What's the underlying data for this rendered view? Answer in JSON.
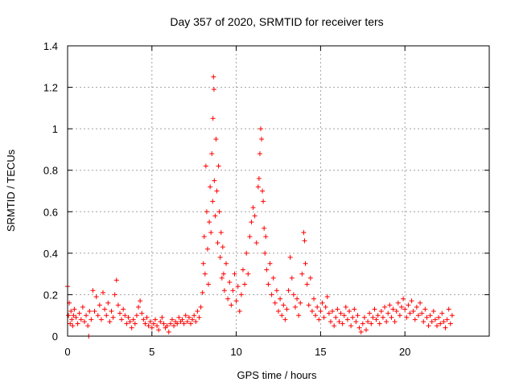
{
  "chart_data": {
    "type": "scatter",
    "title": "Day 357 of 2020, SRMTID for receiver ters",
    "xlabel": "GPS time / hours",
    "ylabel": "SRMTID / TECUs",
    "xlim": [
      0,
      25
    ],
    "ylim": [
      0,
      1.4
    ],
    "xticks": [
      0,
      5,
      10,
      15,
      20
    ],
    "xtick_labels": [
      "0",
      "5",
      "10",
      "15",
      "20"
    ],
    "yticks": [
      0,
      0.2,
      0.4,
      0.6,
      0.8,
      1.0,
      1.2,
      1.4
    ],
    "ytick_labels": [
      "0",
      "0.2",
      "0.4",
      "0.6",
      "0.8",
      "1",
      "1.2",
      "1.4"
    ],
    "grid": true,
    "marker": "+",
    "series": [
      {
        "name": "SRMTID",
        "color": "#ff0000",
        "points": [
          [
            0.0,
            0.24
          ],
          [
            0.05,
            0.1
          ],
          [
            0.1,
            0.16
          ],
          [
            0.15,
            0.06
          ],
          [
            0.2,
            0.12
          ],
          [
            0.25,
            0.08
          ],
          [
            0.3,
            0.05
          ],
          [
            0.35,
            0.1
          ],
          [
            0.4,
            0.13
          ],
          [
            0.5,
            0.09
          ],
          [
            0.6,
            0.06
          ],
          [
            0.7,
            0.11
          ],
          [
            0.8,
            0.08
          ],
          [
            0.9,
            0.14
          ],
          [
            1.0,
            0.07
          ],
          [
            1.1,
            0.1
          ],
          [
            1.2,
            0.05
          ],
          [
            1.25,
            0.0
          ],
          [
            1.3,
            0.12
          ],
          [
            1.4,
            0.08
          ],
          [
            1.5,
            0.22
          ],
          [
            1.6,
            0.12
          ],
          [
            1.7,
            0.19
          ],
          [
            1.8,
            0.1
          ],
          [
            1.9,
            0.15
          ],
          [
            2.0,
            0.08
          ],
          [
            2.1,
            0.21
          ],
          [
            2.2,
            0.13
          ],
          [
            2.3,
            0.1
          ],
          [
            2.4,
            0.16
          ],
          [
            2.5,
            0.07
          ],
          [
            2.6,
            0.12
          ],
          [
            2.7,
            0.09
          ],
          [
            2.8,
            0.2
          ],
          [
            2.9,
            0.27
          ],
          [
            3.0,
            0.15
          ],
          [
            3.1,
            0.11
          ],
          [
            3.2,
            0.08
          ],
          [
            3.3,
            0.13
          ],
          [
            3.4,
            0.1
          ],
          [
            3.5,
            0.06
          ],
          [
            3.6,
            0.09
          ],
          [
            3.7,
            0.07
          ],
          [
            3.8,
            0.04
          ],
          [
            3.9,
            0.08
          ],
          [
            4.0,
            0.06
          ],
          [
            4.1,
            0.1
          ],
          [
            4.2,
            0.14
          ],
          [
            4.3,
            0.17
          ],
          [
            4.4,
            0.11
          ],
          [
            4.5,
            0.08
          ],
          [
            4.6,
            0.06
          ],
          [
            4.7,
            0.09
          ],
          [
            4.8,
            0.05
          ],
          [
            4.9,
            0.07
          ],
          [
            5.0,
            0.04
          ],
          [
            5.1,
            0.06
          ],
          [
            5.2,
            0.08
          ],
          [
            5.3,
            0.05
          ],
          [
            5.4,
            0.03
          ],
          [
            5.5,
            0.07
          ],
          [
            5.6,
            0.09
          ],
          [
            5.7,
            0.06
          ],
          [
            5.8,
            0.04
          ],
          [
            5.9,
            0.05
          ],
          [
            6.0,
            0.02
          ],
          [
            6.1,
            0.06
          ],
          [
            6.2,
            0.08
          ],
          [
            6.3,
            0.05
          ],
          [
            6.4,
            0.07
          ],
          [
            6.5,
            0.06
          ],
          [
            6.6,
            0.09
          ],
          [
            6.7,
            0.07
          ],
          [
            6.8,
            0.08
          ],
          [
            6.9,
            0.06
          ],
          [
            7.0,
            0.1
          ],
          [
            7.1,
            0.07
          ],
          [
            7.2,
            0.09
          ],
          [
            7.3,
            0.06
          ],
          [
            7.4,
            0.08
          ],
          [
            7.5,
            0.1
          ],
          [
            7.6,
            0.07
          ],
          [
            7.7,
            0.12
          ],
          [
            7.8,
            0.09
          ],
          [
            7.9,
            0.14
          ],
          [
            8.0,
            0.21
          ],
          [
            8.05,
            0.35
          ],
          [
            8.1,
            0.48
          ],
          [
            8.15,
            0.3
          ],
          [
            8.2,
            0.82
          ],
          [
            8.25,
            0.6
          ],
          [
            8.3,
            0.42
          ],
          [
            8.35,
            0.25
          ],
          [
            8.4,
            0.55
          ],
          [
            8.45,
            0.72
          ],
          [
            8.5,
            0.5
          ],
          [
            8.55,
            0.88
          ],
          [
            8.6,
            0.65
          ],
          [
            8.62,
            1.05
          ],
          [
            8.65,
            1.25
          ],
          [
            8.68,
            1.19
          ],
          [
            8.7,
            0.75
          ],
          [
            8.75,
            0.58
          ],
          [
            8.8,
            0.95
          ],
          [
            8.85,
            0.7
          ],
          [
            8.9,
            0.45
          ],
          [
            8.95,
            0.82
          ],
          [
            9.0,
            0.6
          ],
          [
            9.05,
            0.38
          ],
          [
            9.1,
            0.5
          ],
          [
            9.15,
            0.28
          ],
          [
            9.2,
            0.43
          ],
          [
            9.25,
            0.3
          ],
          [
            9.3,
            0.22
          ],
          [
            9.4,
            0.35
          ],
          [
            9.5,
            0.18
          ],
          [
            9.6,
            0.26
          ],
          [
            9.7,
            0.15
          ],
          [
            9.8,
            0.22
          ],
          [
            9.9,
            0.3
          ],
          [
            10.0,
            0.17
          ],
          [
            10.1,
            0.24
          ],
          [
            10.2,
            0.12
          ],
          [
            10.3,
            0.2
          ],
          [
            10.4,
            0.32
          ],
          [
            10.5,
            0.25
          ],
          [
            10.6,
            0.4
          ],
          [
            10.7,
            0.3
          ],
          [
            10.8,
            0.48
          ],
          [
            10.9,
            0.55
          ],
          [
            11.0,
            0.62
          ],
          [
            11.1,
            0.58
          ],
          [
            11.2,
            0.45
          ],
          [
            11.3,
            0.72
          ],
          [
            11.35,
            0.76
          ],
          [
            11.4,
            0.88
          ],
          [
            11.45,
            1.0
          ],
          [
            11.5,
            0.95
          ],
          [
            11.55,
            0.7
          ],
          [
            11.6,
            0.65
          ],
          [
            11.65,
            0.52
          ],
          [
            11.7,
            0.4
          ],
          [
            11.75,
            0.48
          ],
          [
            11.8,
            0.32
          ],
          [
            11.9,
            0.25
          ],
          [
            12.0,
            0.35
          ],
          [
            12.1,
            0.2
          ],
          [
            12.2,
            0.28
          ],
          [
            12.3,
            0.16
          ],
          [
            12.4,
            0.22
          ],
          [
            12.5,
            0.12
          ],
          [
            12.6,
            0.18
          ],
          [
            12.7,
            0.1
          ],
          [
            12.8,
            0.15
          ],
          [
            12.9,
            0.08
          ],
          [
            13.0,
            0.13
          ],
          [
            13.1,
            0.22
          ],
          [
            13.2,
            0.38
          ],
          [
            13.3,
            0.28
          ],
          [
            13.4,
            0.2
          ],
          [
            13.5,
            0.14
          ],
          [
            13.6,
            0.18
          ],
          [
            13.7,
            0.1
          ],
          [
            13.8,
            0.16
          ],
          [
            13.9,
            0.3
          ],
          [
            14.0,
            0.5
          ],
          [
            14.05,
            0.46
          ],
          [
            14.1,
            0.35
          ],
          [
            14.2,
            0.25
          ],
          [
            14.3,
            0.15
          ],
          [
            14.4,
            0.28
          ],
          [
            14.5,
            0.12
          ],
          [
            14.6,
            0.18
          ],
          [
            14.7,
            0.1
          ],
          [
            14.8,
            0.14
          ],
          [
            14.9,
            0.08
          ],
          [
            15.0,
            0.12
          ],
          [
            15.1,
            0.16
          ],
          [
            15.2,
            0.09
          ],
          [
            15.3,
            0.14
          ],
          [
            15.4,
            0.19
          ],
          [
            15.5,
            0.11
          ],
          [
            15.6,
            0.07
          ],
          [
            15.7,
            0.12
          ],
          [
            15.8,
            0.05
          ],
          [
            15.9,
            0.09
          ],
          [
            16.0,
            0.13
          ],
          [
            16.1,
            0.07
          ],
          [
            16.2,
            0.11
          ],
          [
            16.3,
            0.06
          ],
          [
            16.4,
            0.1
          ],
          [
            16.5,
            0.14
          ],
          [
            16.6,
            0.08
          ],
          [
            16.7,
            0.12
          ],
          [
            16.8,
            0.05
          ],
          [
            16.9,
            0.09
          ],
          [
            17.0,
            0.13
          ],
          [
            17.1,
            0.07
          ],
          [
            17.2,
            0.1
          ],
          [
            17.3,
            0.04
          ],
          [
            17.4,
            0.02
          ],
          [
            17.5,
            0.06
          ],
          [
            17.6,
            0.09
          ],
          [
            17.7,
            0.03
          ],
          [
            17.8,
            0.07
          ],
          [
            17.9,
            0.11
          ],
          [
            18.0,
            0.06
          ],
          [
            18.1,
            0.09
          ],
          [
            18.2,
            0.13
          ],
          [
            18.3,
            0.08
          ],
          [
            18.4,
            0.1
          ],
          [
            18.5,
            0.06
          ],
          [
            18.6,
            0.12
          ],
          [
            18.7,
            0.09
          ],
          [
            18.8,
            0.14
          ],
          [
            18.9,
            0.07
          ],
          [
            19.0,
            0.11
          ],
          [
            19.1,
            0.15
          ],
          [
            19.2,
            0.09
          ],
          [
            19.3,
            0.13
          ],
          [
            19.4,
            0.07
          ],
          [
            19.5,
            0.12
          ],
          [
            19.6,
            0.16
          ],
          [
            19.7,
            0.1
          ],
          [
            19.8,
            0.14
          ],
          [
            19.9,
            0.18
          ],
          [
            20.0,
            0.13
          ],
          [
            20.1,
            0.09
          ],
          [
            20.2,
            0.15
          ],
          [
            20.3,
            0.11
          ],
          [
            20.4,
            0.17
          ],
          [
            20.5,
            0.12
          ],
          [
            20.6,
            0.08
          ],
          [
            20.7,
            0.14
          ],
          [
            20.8,
            0.1
          ],
          [
            20.9,
            0.16
          ],
          [
            21.0,
            0.11
          ],
          [
            21.1,
            0.07
          ],
          [
            21.2,
            0.13
          ],
          [
            21.3,
            0.09
          ],
          [
            21.4,
            0.05
          ],
          [
            21.5,
            0.1
          ],
          [
            21.6,
            0.07
          ],
          [
            21.7,
            0.12
          ],
          [
            21.8,
            0.08
          ],
          [
            21.9,
            0.05
          ],
          [
            22.0,
            0.09
          ],
          [
            22.1,
            0.06
          ],
          [
            22.2,
            0.11
          ],
          [
            22.3,
            0.07
          ],
          [
            22.4,
            0.04
          ],
          [
            22.5,
            0.08
          ],
          [
            22.6,
            0.13
          ],
          [
            22.7,
            0.06
          ],
          [
            22.8,
            0.1
          ]
        ]
      }
    ]
  }
}
